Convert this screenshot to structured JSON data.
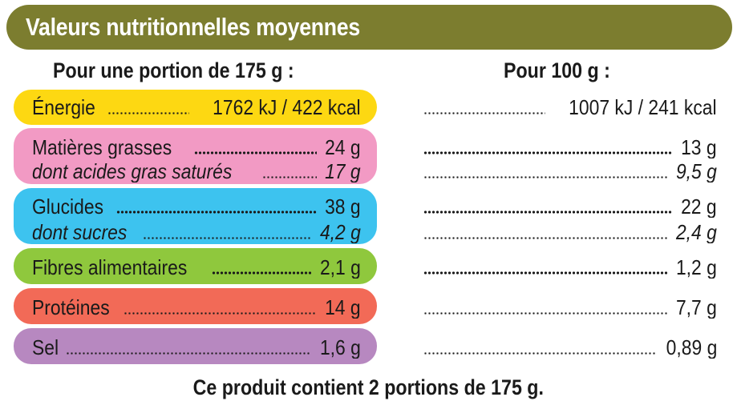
{
  "title": "Valeurs nutritionnelles moyennes",
  "headers": {
    "per_portion": "Pour une portion de 175 g :",
    "per_100g": "Pour 100 g :"
  },
  "colors": {
    "title_bar": "#7c7d2f",
    "energie": "#fdd812",
    "matieres_grasses": "#f29ac4",
    "glucides": "#3dc3ef",
    "fibres": "#8fc83d",
    "proteines": "#f26a57",
    "sel": "#b788c0"
  },
  "rows": {
    "energie": {
      "label": "Énergie",
      "portion": "1762 kJ / 422 kcal",
      "per100": "1007 kJ / 241 kcal"
    },
    "matieres_grasses": {
      "label": "Matières grasses",
      "portion": "24 g",
      "per100": "13 g"
    },
    "acides_gras_satures": {
      "label": "dont acides gras saturés",
      "portion": "17 g",
      "per100": "9,5 g"
    },
    "glucides": {
      "label": "Glucides",
      "portion": "38 g",
      "per100": "22 g"
    },
    "sucres": {
      "label": "dont sucres",
      "portion": "4,2 g",
      "per100": "2,4 g"
    },
    "fibres": {
      "label": "Fibres alimentaires",
      "portion": "2,1 g",
      "per100": "1,2 g"
    },
    "proteines": {
      "label": "Protéines",
      "portion": "14 g",
      "per100": "7,7 g"
    },
    "sel": {
      "label": "Sel",
      "portion": "1,6 g",
      "per100": "0,89 g"
    }
  },
  "footer": "Ce produit contient 2 portions de 175 g."
}
